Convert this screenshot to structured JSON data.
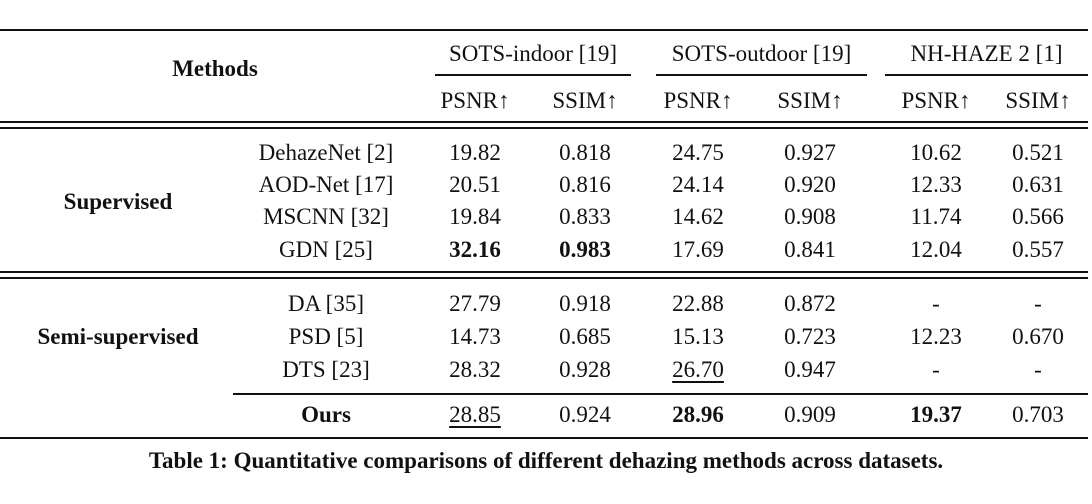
{
  "header": {
    "methods": "Methods",
    "groups": [
      "SOTS-indoor [19]",
      "SOTS-outdoor [19]",
      "NH-HAZE 2 [1]"
    ],
    "metrics": [
      "PSNR↑",
      "SSIM↑",
      "PSNR↑",
      "SSIM↑",
      "PSNR↑",
      "SSIM↑"
    ]
  },
  "sections": [
    {
      "label": "Supervised",
      "rows": [
        {
          "method": "DehazeNet [2]",
          "cells": [
            "19.82",
            "0.818",
            "24.75",
            "0.927",
            "10.62",
            "0.521"
          ]
        },
        {
          "method": "AOD-Net [17]",
          "cells": [
            "20.51",
            "0.816",
            "24.14",
            "0.920",
            "12.33",
            "0.631"
          ]
        },
        {
          "method": "MSCNN [32]",
          "cells": [
            "19.84",
            "0.833",
            "14.62",
            "0.908",
            "11.74",
            "0.566"
          ]
        },
        {
          "method": "GDN [25]",
          "cells": [
            "32.16",
            "0.983",
            "17.69",
            "0.841",
            "12.04",
            "0.557"
          ]
        }
      ]
    },
    {
      "label": "Semi-supervised",
      "rows": [
        {
          "method": "DA [35]",
          "cells": [
            "27.79",
            "0.918",
            "22.88",
            "0.872",
            "-",
            "-"
          ]
        },
        {
          "method": "PSD [5]",
          "cells": [
            "14.73",
            "0.685",
            "15.13",
            "0.723",
            "12.23",
            "0.670"
          ]
        },
        {
          "method": "DTS [23]",
          "cells": [
            "28.32",
            "0.928",
            "26.70",
            "0.947",
            "-",
            "-"
          ]
        },
        {
          "method": "Ours",
          "cells": [
            "28.85",
            "0.924",
            "28.96",
            "0.909",
            "19.37",
            "0.703"
          ]
        }
      ]
    }
  ],
  "emphasis": {
    "bold": [
      "sections.0.rows.3.cells.0",
      "sections.0.rows.3.cells.1",
      "sections.1.rows.3.method",
      "sections.1.rows.3.cells.2",
      "sections.1.rows.3.cells.4"
    ],
    "underline": [
      "sections.1.rows.2.cells.2",
      "sections.1.rows.3.cells.0"
    ]
  },
  "caption": "Table 1: Quantitative comparisons of different dehazing methods across datasets."
}
